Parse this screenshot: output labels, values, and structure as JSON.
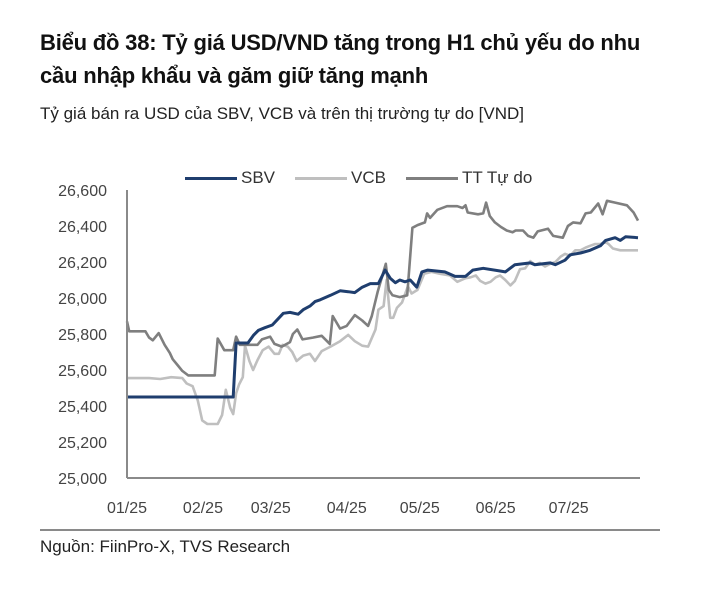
{
  "header": {
    "title": "Biểu đồ 38: Tỷ giá USD/VND tăng trong H1 chủ yếu do nhu cầu nhập khẩu và găm giữ tăng mạnh",
    "subtitle": "Tỷ giá bán ra USD của SBV, VCB và trên thị trường tự do [VND]"
  },
  "footer": {
    "source": "Nguồn: FiinPro-X, TVS Research"
  },
  "colors": {
    "SBV": "#1f3e6e",
    "VCB": "#bfbfbf",
    "TT Tự do": "#7f7f7f",
    "axis": "#8a8a8a"
  },
  "chart_data": {
    "type": "line",
    "title": "Tỷ giá bán ra USD của SBV, VCB và trên thị trường tự do [VND]",
    "xlabel": "",
    "ylabel": "VND",
    "x_tick_labels": [
      "01/25",
      "02/25",
      "03/25",
      "04/25",
      "05/25",
      "06/25",
      "07/25"
    ],
    "x_tick_positions": [
      0,
      1.03,
      1.95,
      2.98,
      3.97,
      5.0,
      5.99
    ],
    "xlim": [
      0,
      6.93
    ],
    "ylim": [
      25000,
      26600
    ],
    "y_ticks": [
      25000,
      25200,
      25400,
      25600,
      25800,
      26000,
      26200,
      26400,
      26600
    ],
    "y_tick_labels": [
      "25,000",
      "25,200",
      "25,400",
      "25,600",
      "25,800",
      "26,000",
      "26,200",
      "26,400",
      "26,600"
    ],
    "grid": false,
    "legend_position": "top",
    "legend": [
      "SBV",
      "VCB",
      "TT Tự do"
    ],
    "series": [
      {
        "name": "SBV",
        "points": [
          [
            0,
            25450
          ],
          [
            1.44,
            25450
          ],
          [
            1.48,
            25750
          ],
          [
            1.64,
            25750
          ],
          [
            1.72,
            25795
          ],
          [
            1.78,
            25820
          ],
          [
            1.87,
            25835
          ],
          [
            1.97,
            25850
          ],
          [
            2.12,
            25915
          ],
          [
            2.21,
            25920
          ],
          [
            2.32,
            25910
          ],
          [
            2.39,
            25935
          ],
          [
            2.48,
            25955
          ],
          [
            2.55,
            25980
          ],
          [
            2.62,
            25990
          ],
          [
            2.76,
            26015
          ],
          [
            2.89,
            26040
          ],
          [
            3.0,
            26035
          ],
          [
            3.09,
            26030
          ],
          [
            3.19,
            26060
          ],
          [
            3.3,
            26080
          ],
          [
            3.41,
            26080
          ],
          [
            3.5,
            26155
          ],
          [
            3.57,
            26110
          ],
          [
            3.64,
            26085
          ],
          [
            3.7,
            26100
          ],
          [
            3.77,
            26090
          ],
          [
            3.84,
            26100
          ],
          [
            3.93,
            26060
          ],
          [
            4.0,
            26145
          ],
          [
            4.08,
            26155
          ],
          [
            4.31,
            26145
          ],
          [
            4.45,
            26120
          ],
          [
            4.59,
            26120
          ],
          [
            4.69,
            26155
          ],
          [
            4.83,
            26165
          ],
          [
            5.06,
            26150
          ],
          [
            5.13,
            26145
          ],
          [
            5.26,
            26185
          ],
          [
            5.47,
            26195
          ],
          [
            5.53,
            26185
          ],
          [
            5.74,
            26195
          ],
          [
            5.81,
            26185
          ],
          [
            5.94,
            26210
          ],
          [
            6.01,
            26240
          ],
          [
            6.15,
            26250
          ],
          [
            6.28,
            26265
          ],
          [
            6.42,
            26290
          ],
          [
            6.49,
            26320
          ],
          [
            6.62,
            26335
          ],
          [
            6.69,
            26320
          ],
          [
            6.76,
            26340
          ],
          [
            6.93,
            26335
          ]
        ]
      },
      {
        "name": "VCB",
        "points": [
          [
            0,
            25555
          ],
          [
            0.3,
            25555
          ],
          [
            0.45,
            25550
          ],
          [
            0.6,
            25560
          ],
          [
            0.75,
            25555
          ],
          [
            0.81,
            25525
          ],
          [
            0.89,
            25510
          ],
          [
            0.96,
            25430
          ],
          [
            1.02,
            25320
          ],
          [
            1.09,
            25300
          ],
          [
            1.15,
            25300
          ],
          [
            1.12,
            25300
          ],
          [
            1.23,
            25300
          ],
          [
            1.29,
            25350
          ],
          [
            1.34,
            25490
          ],
          [
            1.4,
            25390
          ],
          [
            1.44,
            25355
          ],
          [
            1.48,
            25470
          ],
          [
            1.52,
            25520
          ],
          [
            1.57,
            25560
          ],
          [
            1.6,
            25735
          ],
          [
            1.66,
            25650
          ],
          [
            1.71,
            25600
          ],
          [
            1.77,
            25655
          ],
          [
            1.84,
            25710
          ],
          [
            1.92,
            25730
          ],
          [
            2.0,
            25690
          ],
          [
            2.06,
            25690
          ],
          [
            2.11,
            25740
          ],
          [
            2.18,
            25730
          ],
          [
            2.24,
            25700
          ],
          [
            2.3,
            25650
          ],
          [
            2.39,
            25680
          ],
          [
            2.48,
            25690
          ],
          [
            2.55,
            25650
          ],
          [
            2.64,
            25705
          ],
          [
            2.76,
            25730
          ],
          [
            2.89,
            25760
          ],
          [
            3.0,
            25795
          ],
          [
            3.09,
            25760
          ],
          [
            3.19,
            25735
          ],
          [
            3.27,
            25730
          ],
          [
            3.37,
            25825
          ],
          [
            3.41,
            25935
          ],
          [
            3.48,
            25955
          ],
          [
            3.52,
            26100
          ],
          [
            3.57,
            25890
          ],
          [
            3.61,
            25890
          ],
          [
            3.66,
            25945
          ],
          [
            3.73,
            25975
          ],
          [
            3.81,
            26065
          ],
          [
            3.86,
            26025
          ],
          [
            3.94,
            26045
          ],
          [
            4.03,
            26135
          ],
          [
            4.13,
            26145
          ],
          [
            4.24,
            26135
          ],
          [
            4.38,
            26125
          ],
          [
            4.48,
            26090
          ],
          [
            4.59,
            26110
          ],
          [
            4.66,
            26115
          ],
          [
            4.73,
            26125
          ],
          [
            4.79,
            26095
          ],
          [
            4.86,
            26080
          ],
          [
            4.93,
            26090
          ],
          [
            5.0,
            26115
          ],
          [
            5.06,
            26125
          ],
          [
            5.13,
            26100
          ],
          [
            5.2,
            26070
          ],
          [
            5.26,
            26095
          ],
          [
            5.33,
            26160
          ],
          [
            5.4,
            26165
          ],
          [
            5.47,
            26205
          ],
          [
            5.53,
            26185
          ],
          [
            5.6,
            26195
          ],
          [
            5.67,
            26175
          ],
          [
            5.74,
            26190
          ],
          [
            5.81,
            26200
          ],
          [
            5.88,
            26230
          ],
          [
            5.94,
            26245
          ],
          [
            6.01,
            26235
          ],
          [
            6.08,
            26265
          ],
          [
            6.15,
            26265
          ],
          [
            6.22,
            26280
          ],
          [
            6.28,
            26290
          ],
          [
            6.35,
            26300
          ],
          [
            6.42,
            26300
          ],
          [
            6.49,
            26310
          ],
          [
            6.53,
            26300
          ],
          [
            6.59,
            26275
          ],
          [
            6.69,
            26265
          ],
          [
            6.76,
            26265
          ],
          [
            6.93,
            26265
          ]
        ]
      },
      {
        "name": "TT Tự do",
        "points": [
          [
            0,
            25870
          ],
          [
            0.03,
            25815
          ],
          [
            0.25,
            25815
          ],
          [
            0.3,
            25780
          ],
          [
            0.35,
            25765
          ],
          [
            0.43,
            25805
          ],
          [
            0.51,
            25740
          ],
          [
            0.58,
            25695
          ],
          [
            0.62,
            25660
          ],
          [
            0.69,
            25625
          ],
          [
            0.75,
            25595
          ],
          [
            0.83,
            25570
          ],
          [
            0.83,
            25570
          ],
          [
            1.19,
            25570
          ],
          [
            1.23,
            25775
          ],
          [
            1.32,
            25710
          ],
          [
            1.44,
            25710
          ],
          [
            1.48,
            25785
          ],
          [
            1.53,
            25740
          ],
          [
            1.77,
            25740
          ],
          [
            1.83,
            25770
          ],
          [
            1.94,
            25785
          ],
          [
            2.0,
            25745
          ],
          [
            2.1,
            25730
          ],
          [
            2.21,
            25755
          ],
          [
            2.25,
            25800
          ],
          [
            2.31,
            25825
          ],
          [
            2.38,
            25770
          ],
          [
            2.52,
            25780
          ],
          [
            2.64,
            25790
          ],
          [
            2.75,
            25745
          ],
          [
            2.79,
            25900
          ],
          [
            2.89,
            25830
          ],
          [
            2.98,
            25845
          ],
          [
            3.09,
            25905
          ],
          [
            3.19,
            25875
          ],
          [
            3.27,
            25845
          ],
          [
            3.32,
            25900
          ],
          [
            3.4,
            26035
          ],
          [
            3.51,
            26190
          ],
          [
            3.55,
            26045
          ],
          [
            3.6,
            26015
          ],
          [
            3.7,
            26005
          ],
          [
            3.8,
            26015
          ],
          [
            3.87,
            26390
          ],
          [
            3.94,
            26405
          ],
          [
            4.04,
            26420
          ],
          [
            4.07,
            26470
          ],
          [
            4.11,
            26445
          ],
          [
            4.21,
            26490
          ],
          [
            4.34,
            26510
          ],
          [
            4.48,
            26510
          ],
          [
            4.55,
            26500
          ],
          [
            4.59,
            26515
          ],
          [
            4.62,
            26475
          ],
          [
            4.76,
            26465
          ],
          [
            4.83,
            26470
          ],
          [
            4.87,
            26530
          ],
          [
            4.92,
            26455
          ],
          [
            4.99,
            26420
          ],
          [
            5.07,
            26395
          ],
          [
            5.15,
            26375
          ],
          [
            5.23,
            26365
          ],
          [
            5.27,
            26375
          ],
          [
            5.37,
            26375
          ],
          [
            5.44,
            26345
          ],
          [
            5.51,
            26335
          ],
          [
            5.57,
            26370
          ],
          [
            5.71,
            26385
          ],
          [
            5.78,
            26345
          ],
          [
            5.91,
            26335
          ],
          [
            5.98,
            26400
          ],
          [
            6.05,
            26420
          ],
          [
            6.15,
            26415
          ],
          [
            6.22,
            26470
          ],
          [
            6.29,
            26475
          ],
          [
            6.39,
            26525
          ],
          [
            6.45,
            26465
          ],
          [
            6.51,
            26540
          ],
          [
            6.62,
            26530
          ],
          [
            6.78,
            26515
          ],
          [
            6.87,
            26475
          ],
          [
            6.93,
            26430
          ]
        ]
      }
    ]
  }
}
